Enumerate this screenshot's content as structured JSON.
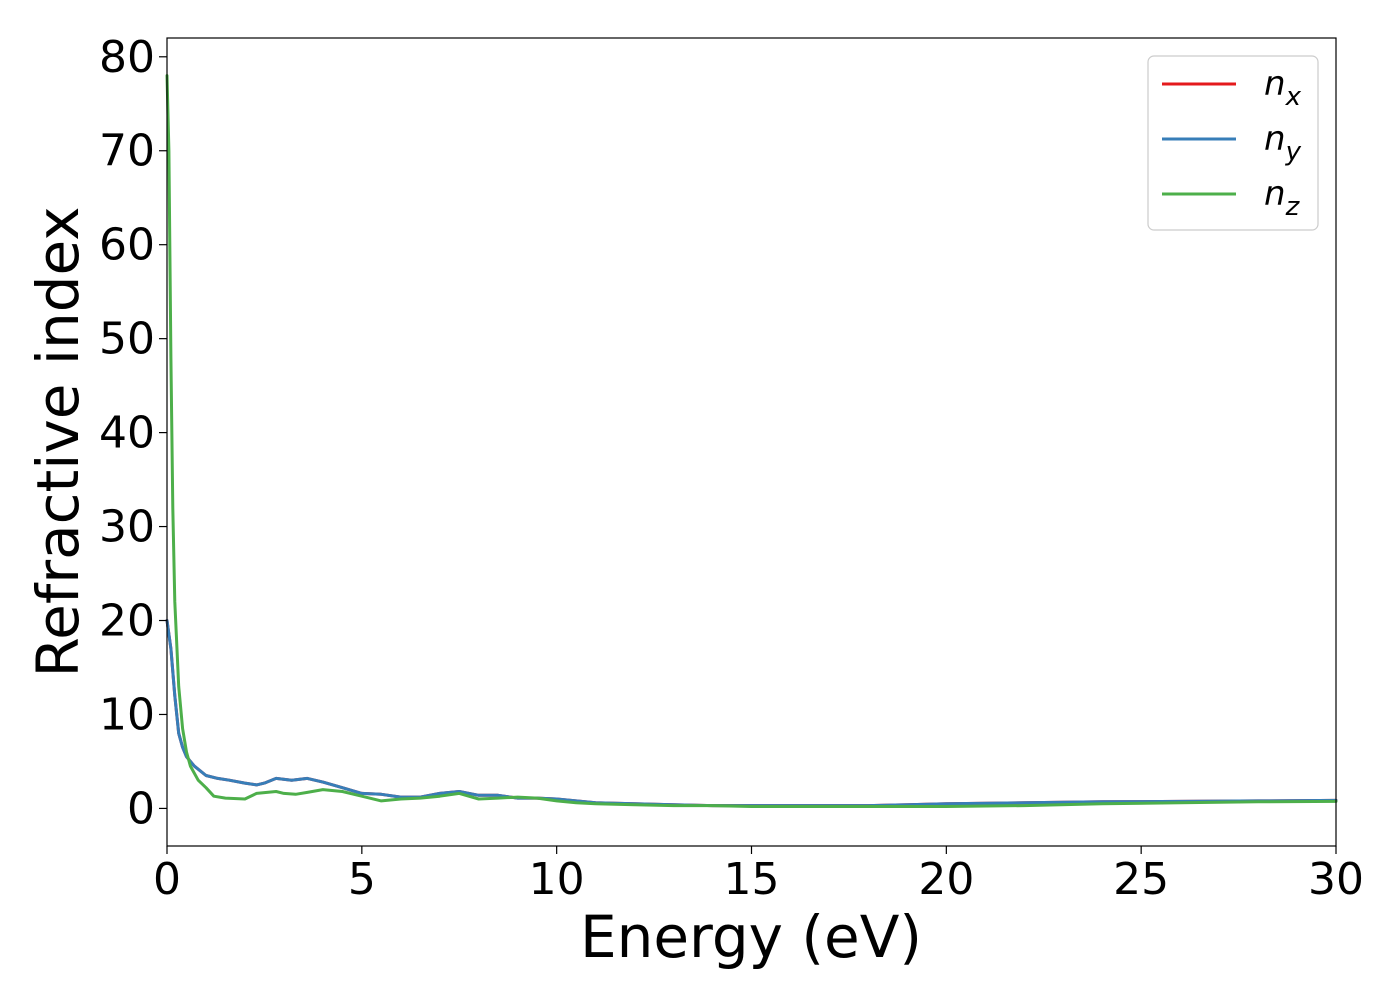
{
  "chart_data": {
    "type": "line",
    "xlabel": "Energy (eV)",
    "ylabel": "Refractive index",
    "xlim": [
      0,
      30
    ],
    "ylim": [
      -4,
      82
    ],
    "xticks": [
      0,
      5,
      10,
      15,
      20,
      25,
      30
    ],
    "yticks": [
      0,
      10,
      20,
      30,
      40,
      50,
      60,
      70,
      80
    ],
    "grid": false,
    "legend_position": "top-right",
    "series": [
      {
        "name": "n_x",
        "legend": {
          "base": "n",
          "sub": "x"
        },
        "color": "#e41a1c",
        "x": [
          0,
          0.1,
          0.2,
          0.3,
          0.4,
          0.5,
          0.7,
          1.0,
          1.3,
          1.6,
          2.0,
          2.3,
          2.5,
          2.8,
          3.2,
          3.6,
          4.0,
          4.5,
          5.0,
          5.5,
          6.0,
          6.5,
          7.0,
          7.5,
          8.0,
          8.5,
          9.0,
          9.5,
          10.0,
          10.5,
          11.0,
          12.0,
          13.0,
          14.0,
          15.0,
          16.0,
          17.0,
          18.0,
          19.0,
          20.0,
          22.0,
          24.0,
          26.0,
          28.0,
          30.0
        ],
        "y": [
          20.0,
          17.0,
          12.0,
          8.0,
          6.5,
          5.5,
          4.5,
          3.5,
          3.2,
          3.0,
          2.7,
          2.5,
          2.7,
          3.2,
          3.0,
          3.2,
          2.8,
          2.2,
          1.6,
          1.5,
          1.2,
          1.2,
          1.6,
          1.8,
          1.4,
          1.4,
          1.1,
          1.1,
          1.0,
          0.8,
          0.6,
          0.5,
          0.4,
          0.3,
          0.3,
          0.3,
          0.3,
          0.3,
          0.4,
          0.5,
          0.6,
          0.7,
          0.75,
          0.8,
          0.85
        ]
      },
      {
        "name": "n_y",
        "legend": {
          "base": "n",
          "sub": "y"
        },
        "color": "#377eb8",
        "x": [
          0,
          0.1,
          0.2,
          0.3,
          0.4,
          0.5,
          0.7,
          1.0,
          1.3,
          1.6,
          2.0,
          2.3,
          2.5,
          2.8,
          3.2,
          3.6,
          4.0,
          4.5,
          5.0,
          5.5,
          6.0,
          6.5,
          7.0,
          7.5,
          8.0,
          8.5,
          9.0,
          9.5,
          10.0,
          10.5,
          11.0,
          12.0,
          13.0,
          14.0,
          15.0,
          16.0,
          17.0,
          18.0,
          19.0,
          20.0,
          22.0,
          24.0,
          26.0,
          28.0,
          30.0
        ],
        "y": [
          20.0,
          17.0,
          12.0,
          8.0,
          6.5,
          5.5,
          4.5,
          3.5,
          3.2,
          3.0,
          2.7,
          2.5,
          2.7,
          3.2,
          3.0,
          3.2,
          2.8,
          2.2,
          1.6,
          1.5,
          1.2,
          1.2,
          1.6,
          1.8,
          1.4,
          1.4,
          1.1,
          1.1,
          1.0,
          0.8,
          0.6,
          0.5,
          0.4,
          0.3,
          0.3,
          0.3,
          0.3,
          0.3,
          0.4,
          0.5,
          0.6,
          0.7,
          0.75,
          0.8,
          0.85
        ]
      },
      {
        "name": "n_z",
        "legend": {
          "base": "n",
          "sub": "z"
        },
        "color": "#4daf4a",
        "x": [
          0,
          0.05,
          0.1,
          0.15,
          0.2,
          0.3,
          0.4,
          0.5,
          0.6,
          0.8,
          1.0,
          1.2,
          1.5,
          2.0,
          2.3,
          2.8,
          3.0,
          3.3,
          3.6,
          4.0,
          4.5,
          5.0,
          5.5,
          6.0,
          6.5,
          7.0,
          7.5,
          8.0,
          8.5,
          9.0,
          9.5,
          10.0,
          10.5,
          11.0,
          12.0,
          13.0,
          14.0,
          15.0,
          16.0,
          17.0,
          18.0,
          19.0,
          20.0,
          22.0,
          24.0,
          26.0,
          28.0,
          30.0
        ],
        "y": [
          78.0,
          70.0,
          48.0,
          32.0,
          22.0,
          13.0,
          8.5,
          6.0,
          4.5,
          3.0,
          2.2,
          1.3,
          1.1,
          1.0,
          1.6,
          1.8,
          1.6,
          1.5,
          1.7,
          2.0,
          1.8,
          1.3,
          0.8,
          1.0,
          1.1,
          1.3,
          1.6,
          1.0,
          1.1,
          1.2,
          1.1,
          0.8,
          0.6,
          0.5,
          0.4,
          0.3,
          0.3,
          0.2,
          0.2,
          0.2,
          0.2,
          0.2,
          0.2,
          0.3,
          0.5,
          0.6,
          0.7,
          0.75
        ]
      }
    ]
  }
}
